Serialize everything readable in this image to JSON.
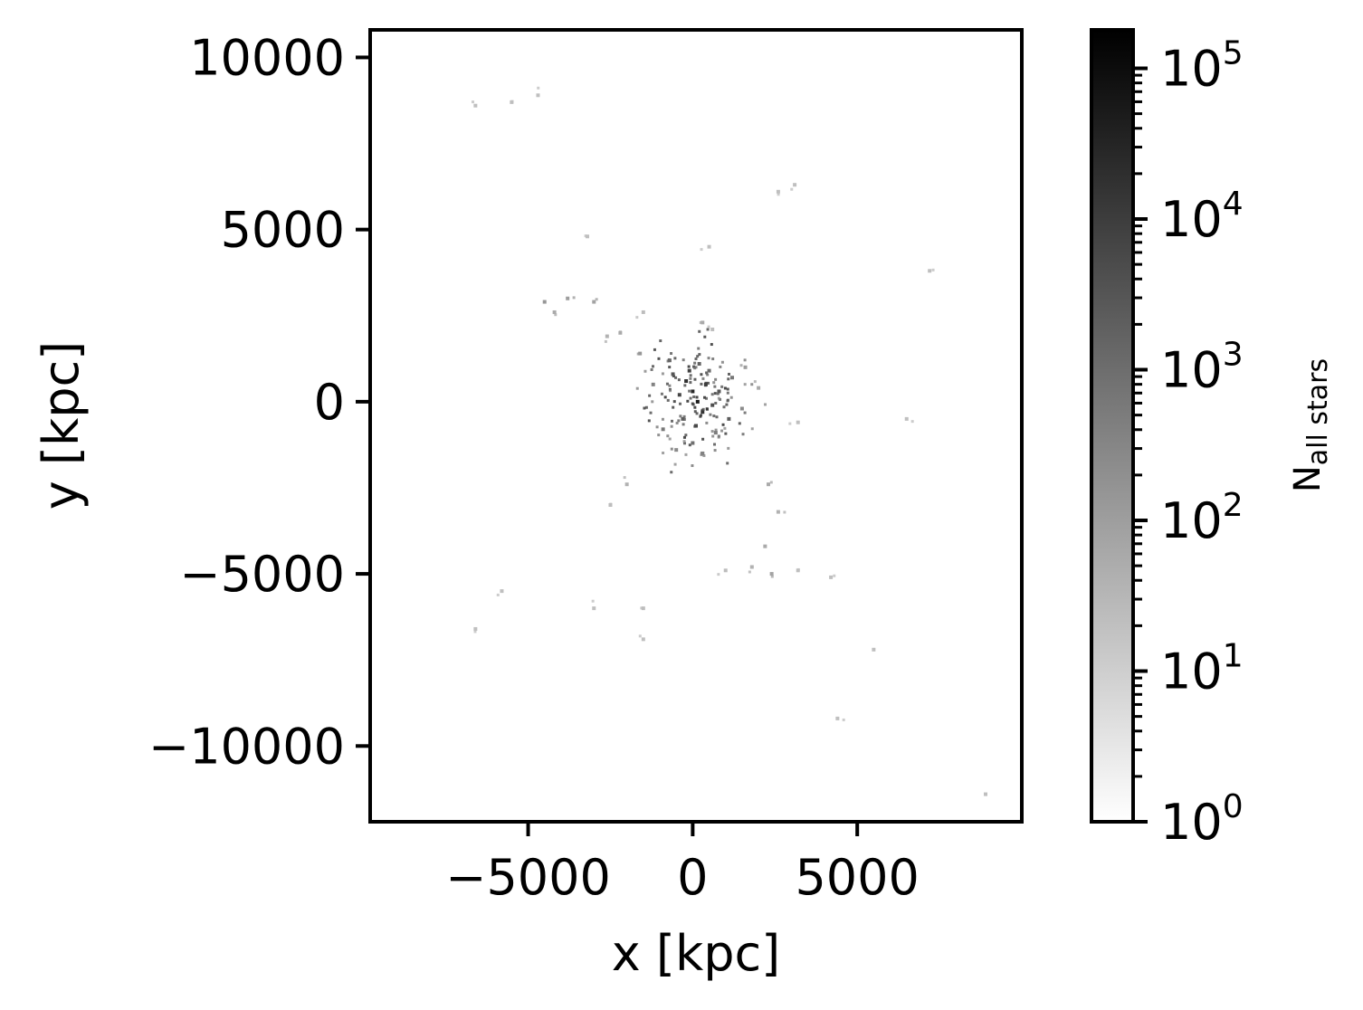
{
  "chart_data": {
    "type": "heatmap",
    "title": "",
    "xlabel": "x [kpc]",
    "ylabel": "y [kpc]",
    "xlim": [
      -9800,
      10000
    ],
    "ylim": [
      -12200,
      10800
    ],
    "x_ticks": [
      -5000,
      0,
      5000
    ],
    "x_tick_labels": [
      "−5000",
      "0",
      "5000"
    ],
    "y_ticks": [
      10000,
      5000,
      0,
      -5000,
      -10000
    ],
    "y_tick_labels": [
      "10000",
      "5000",
      "0",
      "−5000",
      "−10000"
    ],
    "grid": false,
    "colormap": "gray_r",
    "colorbar": {
      "label_main": "N",
      "label_sub": "all stars",
      "scale": "log",
      "range": [
        1,
        180000
      ],
      "ticks": [
        1,
        10,
        100,
        1000,
        10000,
        100000
      ],
      "tick_bases": [
        "10",
        "10",
        "10",
        "10",
        "10",
        "10"
      ],
      "tick_exponents": [
        "0",
        "1",
        "2",
        "3",
        "4",
        "5"
      ]
    },
    "points": [
      [
        0,
        300,
        2000
      ],
      [
        150,
        0,
        3000
      ],
      [
        -200,
        600,
        1500
      ],
      [
        300,
        -300,
        1200
      ],
      [
        -100,
        900,
        800
      ],
      [
        400,
        500,
        900
      ],
      [
        -400,
        200,
        700
      ],
      [
        100,
        -700,
        600
      ],
      [
        600,
        -100,
        500
      ],
      [
        -600,
        800,
        400
      ],
      [
        800,
        300,
        400
      ],
      [
        1100,
        -500,
        300
      ],
      [
        -300,
        -500,
        300
      ],
      [
        200,
        1100,
        250
      ],
      [
        -700,
        1200,
        200
      ],
      [
        500,
        900,
        200
      ],
      [
        0,
        -1200,
        150
      ],
      [
        -900,
        -800,
        120
      ],
      [
        1200,
        700,
        120
      ],
      [
        700,
        -900,
        100
      ],
      [
        -1200,
        500,
        80
      ],
      [
        300,
        -1500,
        80
      ],
      [
        -500,
        -1400,
        60
      ],
      [
        1500,
        -200,
        60
      ],
      [
        -1600,
        1400,
        40
      ],
      [
        1600,
        1000,
        30
      ],
      [
        2000,
        400,
        20
      ],
      [
        -2200,
        2000,
        20
      ],
      [
        -3000,
        2900,
        25
      ],
      [
        -3800,
        3000,
        30
      ],
      [
        -4500,
        2900,
        40
      ],
      [
        -4200,
        2600,
        20
      ],
      [
        -2600,
        1900,
        15
      ],
      [
        -1500,
        2600,
        10
      ],
      [
        300,
        2300,
        20
      ],
      [
        600,
        2100,
        10
      ],
      [
        -2000,
        -2400,
        15
      ],
      [
        -2500,
        -3000,
        10
      ],
      [
        2300,
        -2400,
        20
      ],
      [
        2600,
        -3200,
        15
      ],
      [
        2200,
        -4200,
        20
      ],
      [
        2400,
        -5000,
        25
      ],
      [
        1800,
        -4800,
        15
      ],
      [
        1000,
        -4900,
        10
      ],
      [
        -1500,
        -6000,
        10
      ],
      [
        -1500,
        -6900,
        8
      ],
      [
        -3000,
        -6000,
        6
      ],
      [
        3200,
        -4900,
        8
      ],
      [
        4200,
        -5100,
        6
      ],
      [
        4400,
        -9200,
        5
      ],
      [
        5500,
        -7200,
        3
      ],
      [
        2600,
        6100,
        4
      ],
      [
        3100,
        6300,
        3
      ],
      [
        500,
        4500,
        3
      ],
      [
        -3200,
        4800,
        2
      ],
      [
        -6600,
        8600,
        2
      ],
      [
        -4700,
        8900,
        2
      ],
      [
        -5500,
        8700,
        2
      ],
      [
        7200,
        3800,
        2
      ],
      [
        6500,
        -500,
        2
      ],
      [
        8900,
        -11400,
        2
      ],
      [
        -6600,
        -6600,
        2
      ],
      [
        -5800,
        -5500,
        2
      ],
      [
        3200,
        -600,
        3
      ]
    ]
  }
}
